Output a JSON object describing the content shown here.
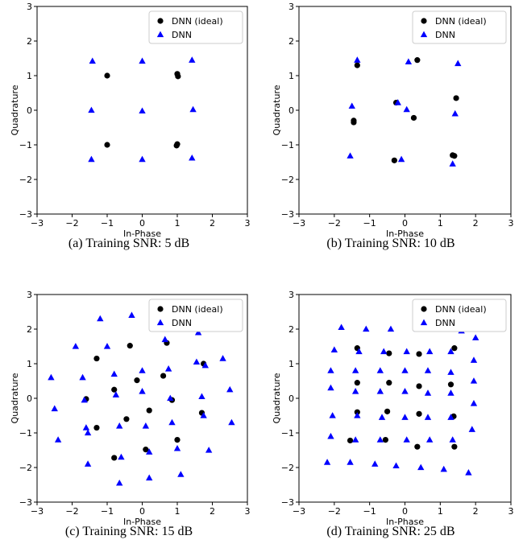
{
  "chart_data": [
    {
      "type": "scatter",
      "caption": "(a) Training SNR: 5 dB",
      "xlabel": "In-Phase",
      "ylabel": "Quadrature",
      "xlim": [
        -3,
        3
      ],
      "ylim": [
        -3,
        3
      ],
      "xticks": [
        "−3",
        "−2",
        "−1",
        "0",
        "1",
        "2",
        "3"
      ],
      "yticks": [
        "−3",
        "−2",
        "−1",
        "0",
        "1",
        "2",
        "3"
      ],
      "grid": false,
      "legend_position": "top-right",
      "series": [
        {
          "name": "DNN (ideal)",
          "marker": "circle",
          "color": "#000000",
          "points": [
            [
              -1.0,
              1.0
            ],
            [
              1.0,
              1.05
            ],
            [
              1.02,
              0.98
            ],
            [
              -1.0,
              -1.0
            ],
            [
              1.0,
              -0.98
            ],
            [
              0.98,
              -1.02
            ]
          ]
        },
        {
          "name": "DNN",
          "marker": "triangle",
          "color": "#0000ff",
          "points": [
            [
              -1.42,
              1.42
            ],
            [
              0.0,
              1.42
            ],
            [
              1.42,
              1.45
            ],
            [
              -1.45,
              0.0
            ],
            [
              0.0,
              -0.02
            ],
            [
              1.45,
              0.02
            ],
            [
              -1.45,
              -1.42
            ],
            [
              0.0,
              -1.42
            ],
            [
              1.42,
              -1.38
            ]
          ]
        }
      ]
    },
    {
      "type": "scatter",
      "caption": "(b) Training SNR: 10 dB",
      "xlabel": "In-Phase",
      "ylabel": "Quadrature",
      "xlim": [
        -3,
        3
      ],
      "ylim": [
        -3,
        3
      ],
      "xticks": [
        "−3",
        "−2",
        "−1",
        "0",
        "1",
        "2",
        "3"
      ],
      "yticks": [
        "−3",
        "−2",
        "−1",
        "0",
        "1",
        "2",
        "3"
      ],
      "grid": false,
      "legend_position": "top-right",
      "series": [
        {
          "name": "DNN (ideal)",
          "marker": "circle",
          "color": "#000000",
          "points": [
            [
              -1.35,
              1.3
            ],
            [
              0.35,
              1.45
            ],
            [
              1.45,
              0.35
            ],
            [
              -0.25,
              0.22
            ],
            [
              0.25,
              -0.22
            ],
            [
              -1.45,
              -0.3
            ],
            [
              -1.45,
              -0.35
            ],
            [
              -0.3,
              -1.45
            ],
            [
              1.35,
              -1.3
            ],
            [
              1.4,
              -1.32
            ]
          ]
        },
        {
          "name": "DNN",
          "marker": "triangle",
          "color": "#0000ff",
          "points": [
            [
              -1.35,
              1.45
            ],
            [
              0.1,
              1.4
            ],
            [
              1.5,
              1.35
            ],
            [
              -1.5,
              0.12
            ],
            [
              -0.2,
              0.22
            ],
            [
              0.05,
              0.02
            ],
            [
              1.42,
              -0.1
            ],
            [
              -1.55,
              -1.32
            ],
            [
              -0.1,
              -1.42
            ],
            [
              1.35,
              -1.55
            ]
          ]
        }
      ]
    },
    {
      "type": "scatter",
      "caption": "(c) Training SNR: 15 dB",
      "xlabel": "In-Phase",
      "ylabel": "Quadrature",
      "xlim": [
        -3,
        3
      ],
      "ylim": [
        -3,
        3
      ],
      "xticks": [
        "−3",
        "−2",
        "−1",
        "0",
        "1",
        "2",
        "3"
      ],
      "yticks": [
        "−3",
        "−2",
        "−1",
        "0",
        "1",
        "2",
        "3"
      ],
      "grid": false,
      "legend_position": "top-right",
      "series": [
        {
          "name": "DNN (ideal)",
          "marker": "circle",
          "color": "#000000",
          "points": [
            [
              -1.3,
              1.15
            ],
            [
              -0.35,
              1.52
            ],
            [
              0.7,
              1.6
            ],
            [
              1.75,
              1.0
            ],
            [
              -0.15,
              0.52
            ],
            [
              0.6,
              0.65
            ],
            [
              -1.6,
              -0.02
            ],
            [
              -0.8,
              0.25
            ],
            [
              0.85,
              -0.05
            ],
            [
              -1.3,
              -0.85
            ],
            [
              -0.45,
              -0.6
            ],
            [
              0.2,
              -0.35
            ],
            [
              1.7,
              -0.42
            ],
            [
              -0.8,
              -1.72
            ],
            [
              0.1,
              -1.48
            ],
            [
              1.0,
              -1.2
            ]
          ]
        },
        {
          "name": "DNN",
          "marker": "triangle",
          "color": "#0000ff",
          "points": [
            [
              -1.2,
              2.3
            ],
            [
              -0.3,
              2.4
            ],
            [
              1.6,
              1.9
            ],
            [
              2.3,
              1.15
            ],
            [
              -1.9,
              1.5
            ],
            [
              -1.0,
              1.5
            ],
            [
              0.65,
              1.7
            ],
            [
              1.55,
              1.05
            ],
            [
              -2.6,
              0.6
            ],
            [
              -1.7,
              0.6
            ],
            [
              -0.8,
              0.7
            ],
            [
              0.0,
              0.8
            ],
            [
              0.75,
              0.85
            ],
            [
              1.8,
              0.95
            ],
            [
              -2.5,
              -0.3
            ],
            [
              -1.65,
              -0.05
            ],
            [
              -0.75,
              0.1
            ],
            [
              0.0,
              0.2
            ],
            [
              0.8,
              0.0
            ],
            [
              1.7,
              0.05
            ],
            [
              2.5,
              0.25
            ],
            [
              -1.6,
              -0.85
            ],
            [
              -0.65,
              -0.8
            ],
            [
              0.1,
              -0.8
            ],
            [
              0.85,
              -0.7
            ],
            [
              1.75,
              -0.5
            ],
            [
              2.55,
              -0.7
            ],
            [
              -2.4,
              -1.2
            ],
            [
              -1.55,
              -1.0
            ],
            [
              -0.6,
              -1.7
            ],
            [
              0.2,
              -1.55
            ],
            [
              1.0,
              -1.45
            ],
            [
              1.9,
              -1.5
            ],
            [
              -1.55,
              -1.9
            ],
            [
              -0.65,
              -2.45
            ],
            [
              0.2,
              -2.3
            ],
            [
              1.1,
              -2.2
            ]
          ]
        }
      ]
    },
    {
      "type": "scatter",
      "caption": "(d) Training SNR: 25 dB",
      "xlabel": "In-Phase",
      "ylabel": "Quadrature",
      "xlim": [
        -3,
        3
      ],
      "ylim": [
        -3,
        3
      ],
      "xticks": [
        "−3",
        "−2",
        "−1",
        "0",
        "1",
        "2",
        "3"
      ],
      "yticks": [
        "−3",
        "−2",
        "−1",
        "0",
        "1",
        "2",
        "3"
      ],
      "grid": false,
      "legend_position": "top-right",
      "series": [
        {
          "name": "DNN (ideal)",
          "marker": "circle",
          "color": "#000000",
          "points": [
            [
              -1.35,
              1.45
            ],
            [
              -0.45,
              1.3
            ],
            [
              0.4,
              1.28
            ],
            [
              1.4,
              1.45
            ],
            [
              -1.35,
              0.45
            ],
            [
              -0.45,
              0.45
            ],
            [
              0.4,
              0.35
            ],
            [
              1.3,
              0.4
            ],
            [
              -1.35,
              -0.4
            ],
            [
              -0.5,
              -0.38
            ],
            [
              0.4,
              -0.45
            ],
            [
              1.38,
              -0.52
            ],
            [
              -1.55,
              -1.22
            ],
            [
              -0.55,
              -1.2
            ],
            [
              0.35,
              -1.4
            ],
            [
              1.4,
              -1.4
            ]
          ]
        },
        {
          "name": "DNN",
          "marker": "triangle",
          "color": "#0000ff",
          "points": [
            [
              -1.8,
              2.05
            ],
            [
              -1.1,
              2.0
            ],
            [
              -0.4,
              2.0
            ],
            [
              0.35,
              2.0
            ],
            [
              1.0,
              2.0
            ],
            [
              1.6,
              1.95
            ],
            [
              -2.0,
              1.4
            ],
            [
              -1.3,
              1.35
            ],
            [
              -0.6,
              1.35
            ],
            [
              0.05,
              1.35
            ],
            [
              0.7,
              1.35
            ],
            [
              1.3,
              1.35
            ],
            [
              2.0,
              1.75
            ],
            [
              -2.1,
              0.8
            ],
            [
              -1.4,
              0.8
            ],
            [
              -0.7,
              0.8
            ],
            [
              0.0,
              0.8
            ],
            [
              0.65,
              0.8
            ],
            [
              1.3,
              0.75
            ],
            [
              1.95,
              1.1
            ],
            [
              -2.1,
              0.3
            ],
            [
              -1.4,
              0.2
            ],
            [
              -0.7,
              0.2
            ],
            [
              0.0,
              0.2
            ],
            [
              0.65,
              0.15
            ],
            [
              1.3,
              0.15
            ],
            [
              1.95,
              0.5
            ],
            [
              -2.05,
              -0.5
            ],
            [
              -1.35,
              -0.5
            ],
            [
              -0.65,
              -0.55
            ],
            [
              0.0,
              -0.55
            ],
            [
              0.65,
              -0.55
            ],
            [
              1.3,
              -0.55
            ],
            [
              1.95,
              -0.15
            ],
            [
              -2.1,
              -1.1
            ],
            [
              -1.4,
              -1.2
            ],
            [
              -0.7,
              -1.2
            ],
            [
              0.05,
              -1.2
            ],
            [
              0.7,
              -1.2
            ],
            [
              1.35,
              -1.2
            ],
            [
              1.9,
              -0.9
            ],
            [
              -2.2,
              -1.85
            ],
            [
              -1.55,
              -1.85
            ],
            [
              -0.85,
              -1.9
            ],
            [
              -0.25,
              -1.95
            ],
            [
              0.45,
              -2.0
            ],
            [
              1.1,
              -2.05
            ],
            [
              1.8,
              -2.15
            ]
          ]
        }
      ]
    }
  ]
}
